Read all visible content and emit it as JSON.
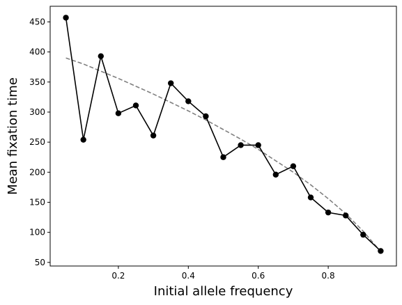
{
  "chart_data": {
    "type": "line",
    "xlabel": "Initial allele frequency",
    "ylabel": "Mean fixation time",
    "xlim": [
      0.005,
      0.995
    ],
    "ylim": [
      44,
      476
    ],
    "xticks": [
      0.2,
      0.4,
      0.6,
      0.8
    ],
    "yticks": [
      50,
      100,
      150,
      200,
      250,
      300,
      350,
      400,
      450
    ],
    "xtick_labels": [
      "0.2",
      "0.4",
      "0.6",
      "0.8"
    ],
    "ytick_labels": [
      "50",
      "100",
      "150",
      "200",
      "250",
      "300",
      "350",
      "400",
      "450"
    ],
    "grid": false,
    "series": [
      {
        "style": "solid line with circle markers",
        "color": "#000000",
        "x": [
          0.05,
          0.1,
          0.15,
          0.2,
          0.25,
          0.3,
          0.35,
          0.4,
          0.45,
          0.5,
          0.55,
          0.6,
          0.65,
          0.7,
          0.75,
          0.8,
          0.85,
          0.9,
          0.95
        ],
        "y": [
          457,
          254,
          393,
          298,
          311,
          261,
          348,
          318,
          293,
          225,
          245,
          245,
          196,
          210,
          158,
          133,
          128,
          96,
          69
        ]
      },
      {
        "style": "dashed line",
        "color": "#808080",
        "x": [
          0.05,
          0.1,
          0.15,
          0.2,
          0.25,
          0.3,
          0.35,
          0.4,
          0.45,
          0.5,
          0.55,
          0.6,
          0.65,
          0.7,
          0.75,
          0.8,
          0.85,
          0.9,
          0.95
        ],
        "y": [
          390,
          380,
          368,
          356,
          343,
          330,
          316,
          302,
          287,
          271,
          255,
          238,
          219,
          200,
          179,
          156,
          131,
          102,
          68
        ]
      }
    ]
  }
}
